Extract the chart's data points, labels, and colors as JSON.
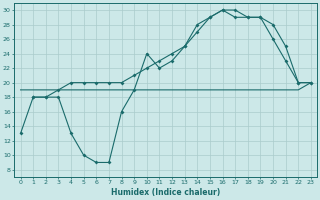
{
  "xlabel": "Humidex (Indice chaleur)",
  "bg_color": "#cce8e8",
  "grid_color": "#aacccc",
  "line_color": "#1a6b6b",
  "xlim": [
    -0.5,
    23.5
  ],
  "ylim": [
    7,
    31
  ],
  "yticks": [
    8,
    10,
    12,
    14,
    16,
    18,
    20,
    22,
    24,
    26,
    28,
    30
  ],
  "xticks": [
    0,
    1,
    2,
    3,
    4,
    5,
    6,
    7,
    8,
    9,
    10,
    11,
    12,
    13,
    14,
    15,
    16,
    17,
    18,
    19,
    20,
    21,
    22,
    23
  ],
  "line1_x": [
    0,
    1,
    2,
    3,
    4,
    5,
    6,
    7,
    8,
    9,
    10,
    11,
    12,
    13,
    14,
    15,
    16,
    17,
    18,
    19,
    20,
    21,
    22,
    23
  ],
  "line1_y": [
    19,
    19,
    19,
    19,
    19,
    19,
    19,
    19,
    19,
    19,
    19,
    19,
    19,
    19,
    19,
    19,
    19,
    19,
    19,
    19,
    19,
    19,
    19,
    20
  ],
  "line2_x": [
    1,
    2,
    3,
    4,
    5,
    6,
    7,
    8,
    9,
    10,
    11,
    12,
    13,
    14,
    15,
    16,
    17,
    18,
    19,
    20,
    21,
    22,
    23
  ],
  "line2_y": [
    18,
    18,
    19,
    20,
    20,
    20,
    20,
    20,
    21,
    22,
    23,
    24,
    25,
    27,
    29,
    30,
    30,
    29,
    29,
    28,
    25,
    20,
    20
  ],
  "line3_x": [
    0,
    1,
    2,
    3,
    4,
    5,
    6,
    7,
    8,
    9,
    10,
    11,
    12,
    13,
    14,
    15,
    16,
    17,
    18,
    19,
    20,
    21,
    22,
    23
  ],
  "line3_y": [
    13,
    18,
    18,
    18,
    13,
    10,
    9,
    9,
    16,
    19,
    24,
    22,
    23,
    25,
    28,
    29,
    30,
    29,
    29,
    29,
    26,
    23,
    20,
    20
  ]
}
